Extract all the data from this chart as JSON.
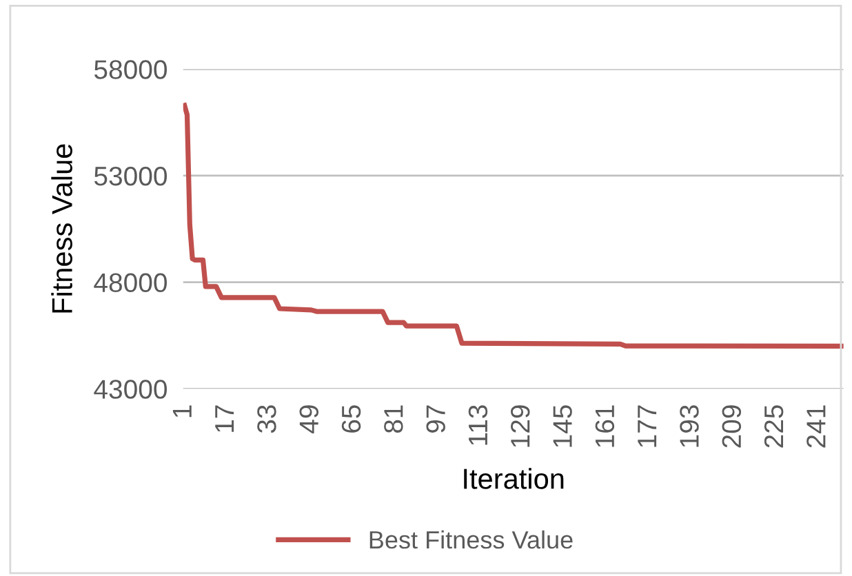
{
  "chart_data": {
    "type": "line",
    "xlabel": "Iteration",
    "ylabel": "Fitness Value",
    "x": [
      1,
      2,
      3,
      4,
      5,
      8,
      9,
      13,
      15,
      35,
      37,
      49,
      51,
      76,
      78,
      84,
      85,
      104,
      106,
      166,
      168,
      250
    ],
    "series": [
      {
        "name": "Best Fitness Value",
        "color": "#c0504d",
        "values": [
          56300,
          55850,
          50700,
          49100,
          49040,
          49040,
          47800,
          47800,
          47280,
          47280,
          46760,
          46700,
          46630,
          46630,
          46110,
          46110,
          45950,
          45950,
          45140,
          45100,
          45010,
          45000
        ]
      }
    ],
    "xlim": [
      0.5,
      250.5
    ],
    "xticks": [
      1,
      17,
      33,
      49,
      65,
      81,
      97,
      113,
      129,
      145,
      161,
      177,
      193,
      209,
      225,
      241
    ],
    "ylim": [
      43000,
      58000
    ],
    "yticks": [
      43000,
      48000,
      53000,
      58000
    ],
    "grid": "y",
    "legend": "bottom",
    "marker": "none",
    "line_style": "solid"
  }
}
